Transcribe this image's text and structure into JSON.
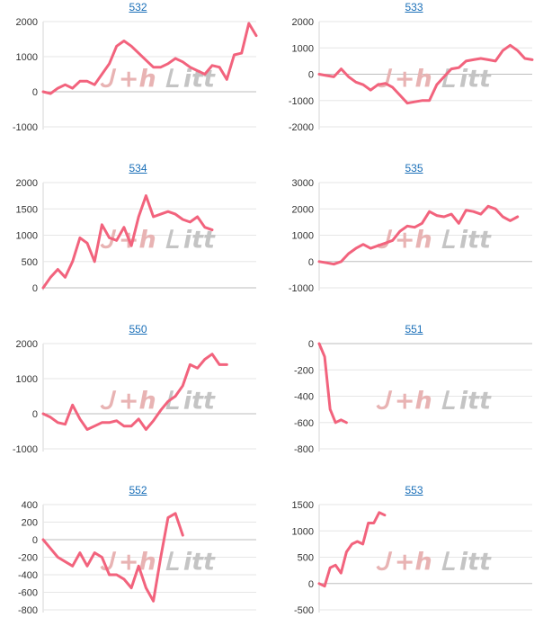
{
  "colors": {
    "series": "#f2637d",
    "grid": "#e6e6e6",
    "link": "#1a6fb8",
    "watermark_red": "#e8b3b3",
    "watermark_gray": "#c4c4c4"
  },
  "watermark": {
    "part1": "Ｊ+h",
    "part2": "Ｌ",
    "part3": "itt"
  },
  "chart_data": [
    {
      "type": "line",
      "title": "532",
      "ylim": [
        -1000,
        2000
      ],
      "yticks": [
        2000,
        1000,
        0,
        -1000
      ],
      "x_count": 30,
      "series": [
        {
          "values": [
            0,
            -50,
            100,
            200,
            100,
            300,
            300,
            200,
            500,
            800,
            1300,
            1450,
            1300,
            1100,
            900,
            700,
            700,
            800,
            950,
            850,
            700,
            600,
            500,
            750,
            700,
            350,
            1050,
            1100,
            1950,
            1600
          ]
        }
      ]
    },
    {
      "type": "line",
      "title": "533",
      "ylim": [
        -2000,
        2000
      ],
      "yticks": [
        2000,
        1000,
        0,
        -1000,
        -2000
      ],
      "x_count": 30,
      "series": [
        {
          "values": [
            0,
            -50,
            -100,
            200,
            -100,
            -300,
            -400,
            -600,
            -400,
            -350,
            -500,
            -800,
            -1100,
            -1050,
            -1000,
            -1000,
            -400,
            -100,
            200,
            250,
            500,
            550,
            600,
            550,
            500,
            900,
            1100,
            900,
            600,
            550
          ]
        }
      ]
    },
    {
      "type": "line",
      "title": "534",
      "ylim": [
        0,
        2000
      ],
      "yticks": [
        2000,
        1500,
        1000,
        500,
        0
      ],
      "x_count": 30,
      "series": [
        {
          "values": [
            0,
            200,
            350,
            200,
            500,
            950,
            850,
            500,
            1200,
            950,
            900,
            1150,
            800,
            1350,
            1750,
            1350,
            1400,
            1450,
            1400,
            1300,
            1250,
            1350,
            1150,
            1100
          ]
        }
      ]
    },
    {
      "type": "line",
      "title": "535",
      "ylim": [
        -1000,
        3000
      ],
      "yticks": [
        3000,
        2000,
        1000,
        0,
        -1000
      ],
      "x_count": 30,
      "series": [
        {
          "values": [
            0,
            -50,
            -100,
            0,
            300,
            500,
            650,
            500,
            600,
            700,
            800,
            1150,
            1350,
            1300,
            1450,
            1900,
            1750,
            1700,
            1800,
            1450,
            1950,
            1900,
            1800,
            2100,
            2000,
            1700,
            1550,
            1700
          ]
        }
      ]
    },
    {
      "type": "line",
      "title": "550",
      "ylim": [
        -1000,
        2000
      ],
      "yticks": [
        2000,
        1000,
        0,
        -1000
      ],
      "x_count": 30,
      "series": [
        {
          "values": [
            0,
            -100,
            -250,
            -300,
            250,
            -150,
            -450,
            -350,
            -250,
            -250,
            -200,
            -350,
            -350,
            -150,
            -450,
            -200,
            100,
            350,
            500,
            800,
            1400,
            1300,
            1550,
            1700,
            1400,
            1400
          ]
        }
      ]
    },
    {
      "type": "line",
      "title": "551",
      "ylim": [
        -800,
        0
      ],
      "yticks": [
        0,
        -200,
        -400,
        -600,
        -800
      ],
      "x_count": 40,
      "series": [
        {
          "values": [
            0,
            -100,
            -500,
            -600,
            -580,
            -600
          ]
        }
      ]
    },
    {
      "type": "line",
      "title": "552",
      "ylim": [
        -800,
        400
      ],
      "yticks": [
        400,
        200,
        0,
        -200,
        -400,
        -600,
        -800
      ],
      "x_count": 30,
      "series": [
        {
          "values": [
            0,
            -100,
            -200,
            -250,
            -300,
            -150,
            -300,
            -150,
            -200,
            -400,
            -400,
            -450,
            -550,
            -300,
            -550,
            -700,
            -200,
            250,
            300,
            50
          ]
        }
      ]
    },
    {
      "type": "line",
      "title": "553",
      "ylim": [
        -500,
        1500
      ],
      "yticks": [
        1500,
        1000,
        500,
        0,
        -500
      ],
      "x_count": 40,
      "series": [
        {
          "values": [
            0,
            -50,
            300,
            350,
            200,
            600,
            750,
            800,
            750,
            1150,
            1150,
            1350,
            1300
          ]
        }
      ]
    }
  ]
}
